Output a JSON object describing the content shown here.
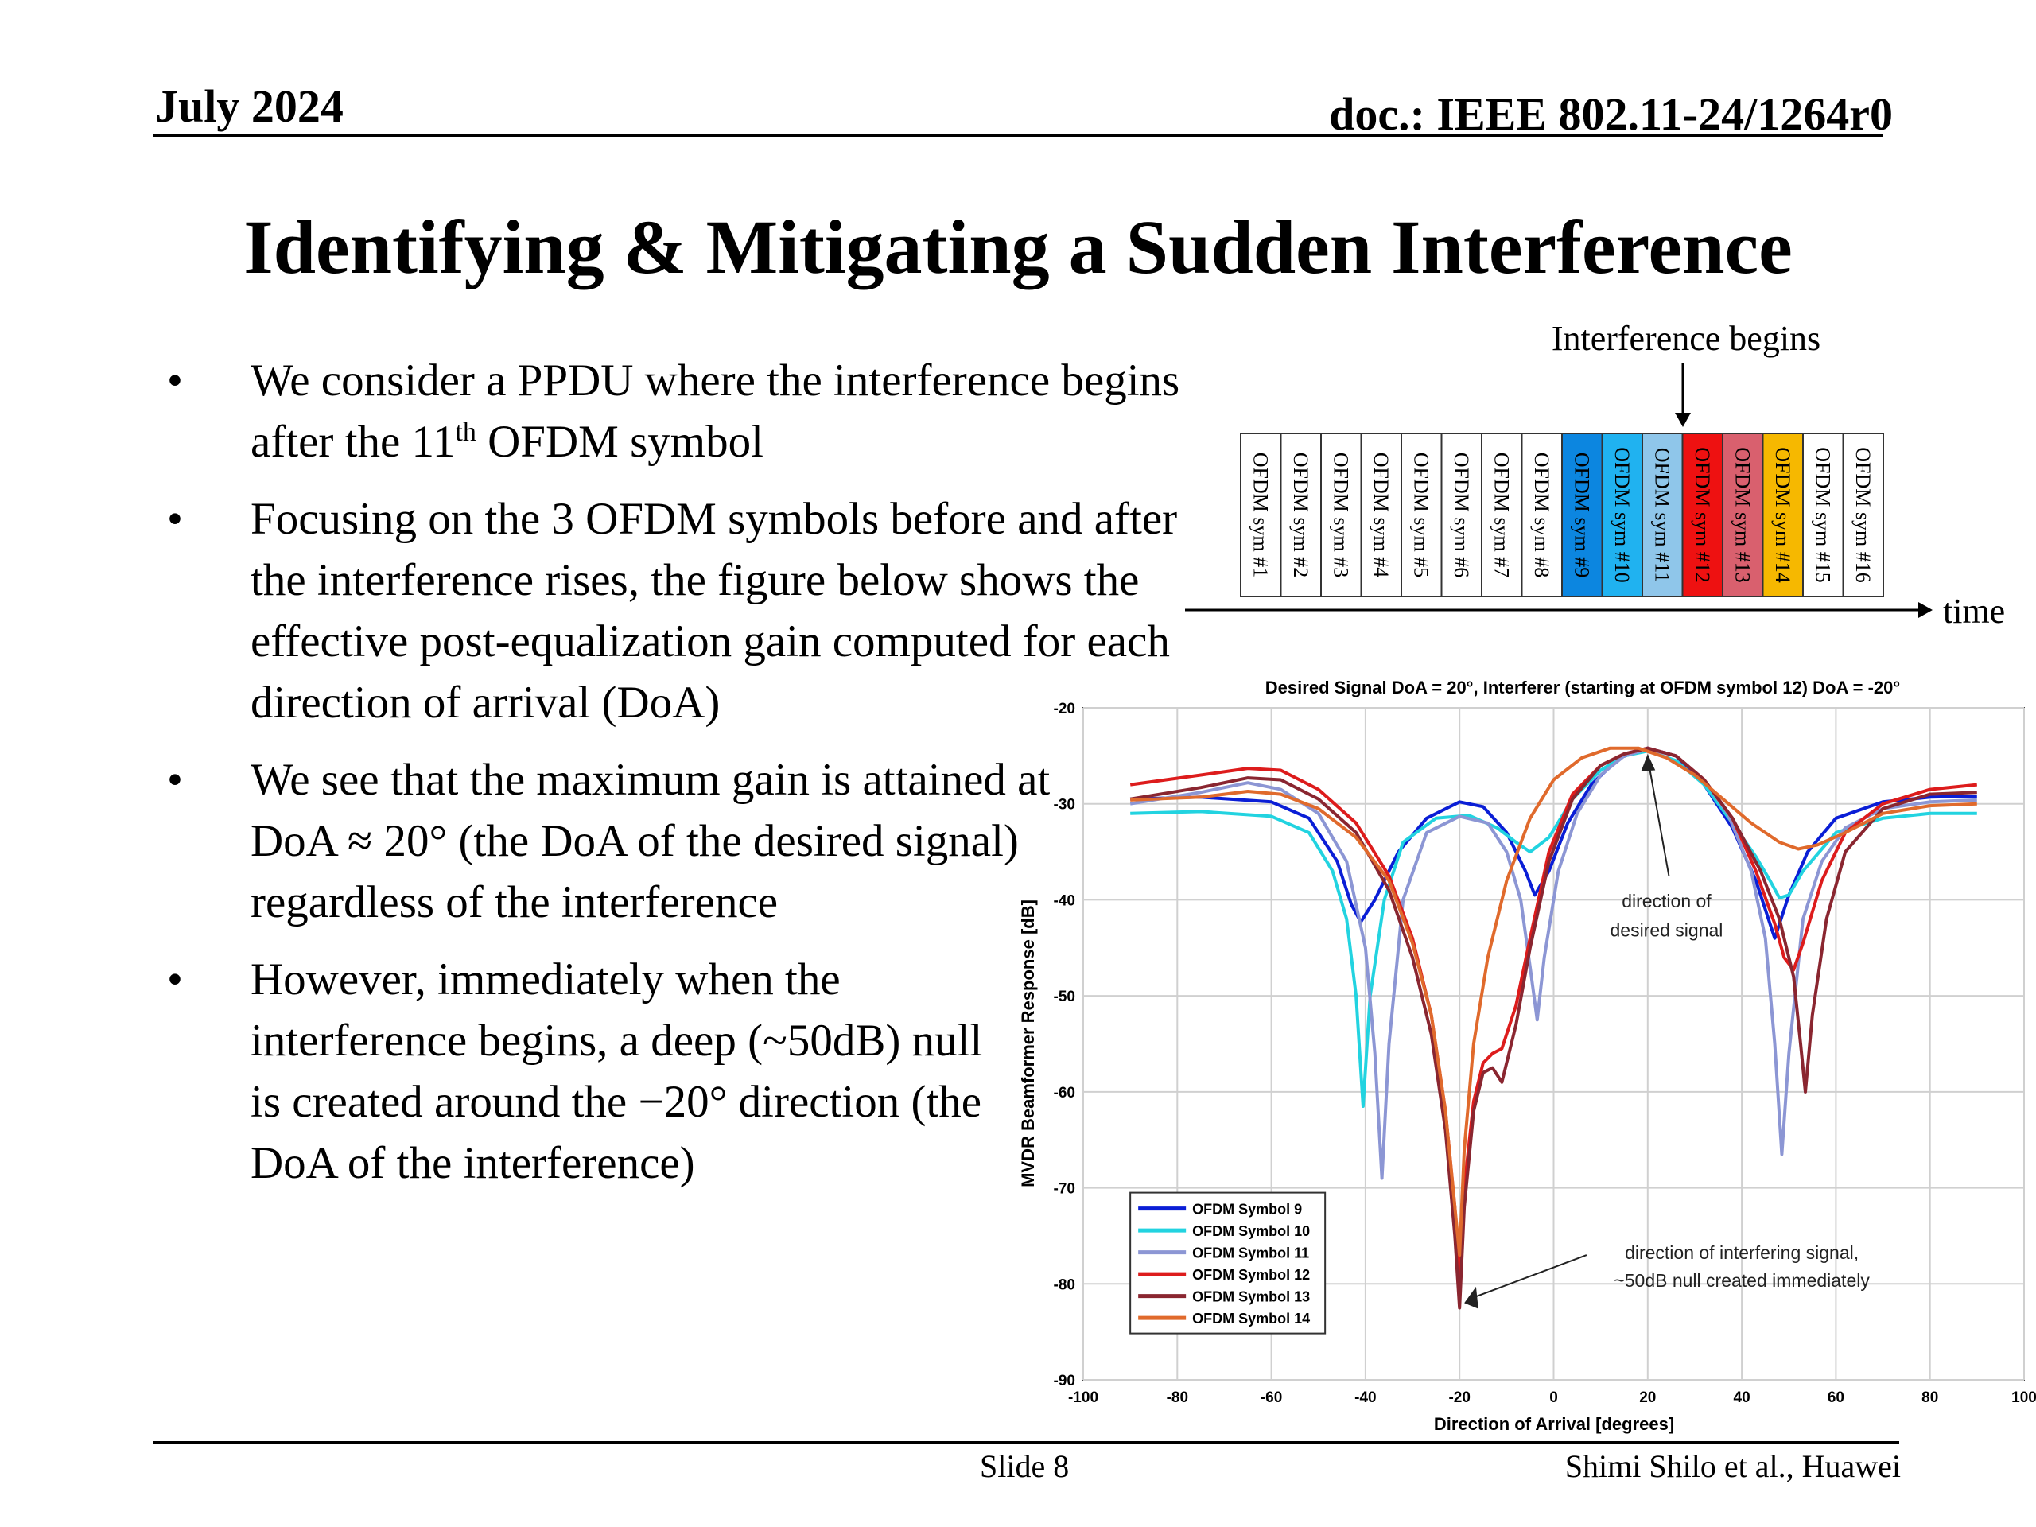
{
  "header": {
    "date": "July 2024",
    "doc": "doc.: IEEE 802.11-24/1264r0"
  },
  "title": "Identifying & Mitigating a Sudden Interference",
  "bullets": [
    {
      "segments": [
        "We consider a PPDU where the interference begins after the 11",
        "th",
        " OFDM symbol"
      ]
    },
    {
      "text": "Focusing on the 3 OFDM symbols before and after the interference rises, the figure below shows the effective post-equalization gain computed for each direction of arrival (DoA)"
    },
    {
      "text": "We see that the maximum gain is attained at DoA ≈ 20° (the DoA of the desired signal) regardless of the interference"
    },
    {
      "text": "However, immediately when the interference begins, a deep (~50dB) null is created around the −20° direction (the DoA of the interference)"
    }
  ],
  "bullet_symbol": "•",
  "timeline": {
    "interference_label": "Interference begins",
    "time_label": "time",
    "symbols": [
      {
        "label": "OFDM sym #1",
        "color": "#ffffff"
      },
      {
        "label": "OFDM sym #2",
        "color": "#ffffff"
      },
      {
        "label": "OFDM sym #3",
        "color": "#ffffff"
      },
      {
        "label": "OFDM sym #4",
        "color": "#ffffff"
      },
      {
        "label": "OFDM sym #5",
        "color": "#ffffff"
      },
      {
        "label": "OFDM sym #6",
        "color": "#ffffff"
      },
      {
        "label": "OFDM sym #7",
        "color": "#ffffff"
      },
      {
        "label": "OFDM sym #8",
        "color": "#ffffff"
      },
      {
        "label": "OFDM sym #9",
        "color": "#0c86e0"
      },
      {
        "label": "OFDM sym #10",
        "color": "#20b2f0"
      },
      {
        "label": "OFDM sym #11",
        "color": "#8fc6ea"
      },
      {
        "label": "OFDM sym #12",
        "color": "#ee1111"
      },
      {
        "label": "OFDM sym #13",
        "color": "#d9606e"
      },
      {
        "label": "OFDM sym #14",
        "color": "#f6b800"
      },
      {
        "label": "OFDM sym #15",
        "color": "#ffffff"
      },
      {
        "label": "OFDM sym #16",
        "color": "#ffffff"
      }
    ]
  },
  "chart_data": {
    "type": "line",
    "title": "Desired Signal DoA = 20°, Interferer (starting at OFDM symbol 12) DoA = -20°",
    "xlabel": "Direction of Arrival [degrees]",
    "ylabel": "MVDR Beamformer Response [dB]",
    "xlim": [
      -100,
      100
    ],
    "ylim": [
      -90,
      -20
    ],
    "xticks": [
      -100,
      -80,
      -60,
      -40,
      -20,
      0,
      20,
      40,
      60,
      80,
      100
    ],
    "yticks": [
      -20,
      -30,
      -40,
      -50,
      -60,
      -70,
      -80,
      -90
    ],
    "grid": true,
    "legend_position": "bottom-left",
    "annotations": [
      {
        "text": "direction of desired signal",
        "line1": "direction of",
        "line2": "desired signal",
        "points_to": [
          20,
          -24
        ]
      },
      {
        "text": "direction of interfering signal, ~50dB null created immediately",
        "line1": "direction of interfering signal,",
        "line2": "~50dB null created immediately",
        "points_to": [
          -20,
          -82
        ]
      }
    ],
    "series": [
      {
        "name": "OFDM Symbol 9",
        "color": "#0a1ed6",
        "points": [
          [
            -90,
            -29.5
          ],
          [
            -75,
            -29.3
          ],
          [
            -60,
            -29.8
          ],
          [
            -52,
            -31.5
          ],
          [
            -46,
            -36
          ],
          [
            -43,
            -40.5
          ],
          [
            -41,
            -42.3
          ],
          [
            -38,
            -40
          ],
          [
            -33,
            -35
          ],
          [
            -27,
            -31.5
          ],
          [
            -20,
            -29.8
          ],
          [
            -15,
            -30.3
          ],
          [
            -10,
            -33
          ],
          [
            -6,
            -37
          ],
          [
            -4,
            -39.5
          ],
          [
            -1,
            -37
          ],
          [
            3,
            -32
          ],
          [
            8,
            -28
          ],
          [
            14,
            -25.2
          ],
          [
            20,
            -24.2
          ],
          [
            26,
            -25
          ],
          [
            32,
            -28
          ],
          [
            38,
            -32.5
          ],
          [
            43,
            -38
          ],
          [
            47,
            -44
          ],
          [
            50,
            -39.5
          ],
          [
            54,
            -35
          ],
          [
            60,
            -31.5
          ],
          [
            70,
            -29.8
          ],
          [
            80,
            -29.3
          ],
          [
            90,
            -29.2
          ]
        ]
      },
      {
        "name": "OFDM Symbol 10",
        "color": "#22d3e0",
        "points": [
          [
            -90,
            -31
          ],
          [
            -75,
            -30.8
          ],
          [
            -60,
            -31.3
          ],
          [
            -52,
            -33
          ],
          [
            -47,
            -37
          ],
          [
            -44,
            -42
          ],
          [
            -42,
            -50
          ],
          [
            -40.5,
            -61.5
          ],
          [
            -39,
            -50
          ],
          [
            -36,
            -40
          ],
          [
            -32,
            -34
          ],
          [
            -25,
            -31.5
          ],
          [
            -18,
            -31.2
          ],
          [
            -12,
            -32.5
          ],
          [
            -8,
            -34
          ],
          [
            -5,
            -35
          ],
          [
            -1,
            -33.5
          ],
          [
            4,
            -29.5
          ],
          [
            10,
            -26.5
          ],
          [
            15,
            -25
          ],
          [
            20,
            -24.5
          ],
          [
            26,
            -25.5
          ],
          [
            32,
            -28
          ],
          [
            38,
            -32
          ],
          [
            43,
            -35.5
          ],
          [
            46,
            -38
          ],
          [
            48,
            -39.8
          ],
          [
            50,
            -39.5
          ],
          [
            53,
            -37
          ],
          [
            60,
            -33
          ],
          [
            70,
            -31.5
          ],
          [
            80,
            -31
          ],
          [
            90,
            -31
          ]
        ]
      },
      {
        "name": "OFDM Symbol 11",
        "color": "#8c96d4",
        "points": [
          [
            -90,
            -30
          ],
          [
            -75,
            -28.8
          ],
          [
            -65,
            -27.8
          ],
          [
            -58,
            -28.5
          ],
          [
            -50,
            -31
          ],
          [
            -44,
            -36
          ],
          [
            -40,
            -45
          ],
          [
            -38,
            -56
          ],
          [
            -36.5,
            -69
          ],
          [
            -35,
            -55
          ],
          [
            -32,
            -40
          ],
          [
            -27,
            -33
          ],
          [
            -20,
            -31.3
          ],
          [
            -14,
            -32
          ],
          [
            -10,
            -35
          ],
          [
            -7,
            -40
          ],
          [
            -5,
            -47
          ],
          [
            -3.5,
            -52.5
          ],
          [
            -2,
            -46
          ],
          [
            1,
            -37
          ],
          [
            5,
            -31
          ],
          [
            10,
            -27
          ],
          [
            15,
            -25
          ],
          [
            20,
            -24.3
          ],
          [
            26,
            -25
          ],
          [
            32,
            -27.5
          ],
          [
            37,
            -31
          ],
          [
            42,
            -37
          ],
          [
            45,
            -44
          ],
          [
            47,
            -55
          ],
          [
            48.5,
            -66.5
          ],
          [
            50,
            -56
          ],
          [
            53,
            -42
          ],
          [
            57,
            -36
          ],
          [
            62,
            -32.5
          ],
          [
            70,
            -30.5
          ],
          [
            80,
            -29.8
          ],
          [
            90,
            -29.6
          ]
        ]
      },
      {
        "name": "OFDM Symbol 12",
        "color": "#dd1c1c",
        "points": [
          [
            -90,
            -28
          ],
          [
            -75,
            -27
          ],
          [
            -65,
            -26.3
          ],
          [
            -58,
            -26.5
          ],
          [
            -50,
            -28.5
          ],
          [
            -42,
            -32
          ],
          [
            -35,
            -37.5
          ],
          [
            -30,
            -44
          ],
          [
            -26,
            -52
          ],
          [
            -23,
            -62
          ],
          [
            -21,
            -72
          ],
          [
            -20,
            -80
          ],
          [
            -19,
            -70
          ],
          [
            -17,
            -61
          ],
          [
            -15,
            -57
          ],
          [
            -13,
            -56
          ],
          [
            -11,
            -55.5
          ],
          [
            -8,
            -51
          ],
          [
            -5,
            -44
          ],
          [
            -1,
            -35
          ],
          [
            4,
            -29
          ],
          [
            10,
            -26
          ],
          [
            15,
            -24.8
          ],
          [
            20,
            -24.2
          ],
          [
            26,
            -25
          ],
          [
            32,
            -27.5
          ],
          [
            38,
            -31.5
          ],
          [
            43,
            -37
          ],
          [
            47,
            -42.5
          ],
          [
            49,
            -46
          ],
          [
            51,
            -47.3
          ],
          [
            53,
            -44.5
          ],
          [
            57,
            -38
          ],
          [
            62,
            -33
          ],
          [
            70,
            -30
          ],
          [
            80,
            -28.5
          ],
          [
            90,
            -28
          ]
        ]
      },
      {
        "name": "OFDM Symbol 13",
        "color": "#8a2630",
        "points": [
          [
            -90,
            -29.5
          ],
          [
            -75,
            -28.3
          ],
          [
            -65,
            -27.3
          ],
          [
            -58,
            -27.5
          ],
          [
            -50,
            -29.5
          ],
          [
            -42,
            -33
          ],
          [
            -35,
            -39
          ],
          [
            -30,
            -46
          ],
          [
            -26,
            -54
          ],
          [
            -23,
            -64
          ],
          [
            -21,
            -75
          ],
          [
            -20,
            -82.5
          ],
          [
            -19,
            -72
          ],
          [
            -17,
            -62
          ],
          [
            -15,
            -58
          ],
          [
            -13,
            -57.5
          ],
          [
            -11,
            -59
          ],
          [
            -8,
            -53
          ],
          [
            -5,
            -45
          ],
          [
            -1,
            -36
          ],
          [
            4,
            -29.5
          ],
          [
            10,
            -26
          ],
          [
            15,
            -24.8
          ],
          [
            20,
            -24.2
          ],
          [
            26,
            -25
          ],
          [
            32,
            -27.5
          ],
          [
            38,
            -31.5
          ],
          [
            44,
            -37
          ],
          [
            48,
            -42
          ],
          [
            51,
            -48
          ],
          [
            52.5,
            -55
          ],
          [
            53.5,
            -60
          ],
          [
            55,
            -52
          ],
          [
            58,
            -42
          ],
          [
            62,
            -35
          ],
          [
            70,
            -30.5
          ],
          [
            80,
            -29
          ],
          [
            90,
            -28.8
          ]
        ]
      },
      {
        "name": "OFDM Symbol 14",
        "color": "#e06a2c",
        "points": [
          [
            -90,
            -29.6
          ],
          [
            -75,
            -29.3
          ],
          [
            -65,
            -28.7
          ],
          [
            -58,
            -29
          ],
          [
            -50,
            -30.5
          ],
          [
            -42,
            -33.5
          ],
          [
            -35,
            -38
          ],
          [
            -30,
            -44.5
          ],
          [
            -26,
            -52
          ],
          [
            -23,
            -62
          ],
          [
            -21,
            -72
          ],
          [
            -20,
            -77
          ],
          [
            -19,
            -66
          ],
          [
            -17,
            -55
          ],
          [
            -14,
            -46
          ],
          [
            -10,
            -38
          ],
          [
            -5,
            -31.5
          ],
          [
            0,
            -27.5
          ],
          [
            6,
            -25.2
          ],
          [
            12,
            -24.2
          ],
          [
            18,
            -24.2
          ],
          [
            24,
            -25.2
          ],
          [
            30,
            -27
          ],
          [
            36,
            -29.5
          ],
          [
            42,
            -32
          ],
          [
            48,
            -34
          ],
          [
            52,
            -34.7
          ],
          [
            56,
            -34.3
          ],
          [
            62,
            -33
          ],
          [
            70,
            -31
          ],
          [
            80,
            -30.2
          ],
          [
            90,
            -30
          ]
        ]
      }
    ]
  },
  "footer": {
    "slide": "Slide 8",
    "author": "Shimi Shilo et al., Huawei"
  }
}
